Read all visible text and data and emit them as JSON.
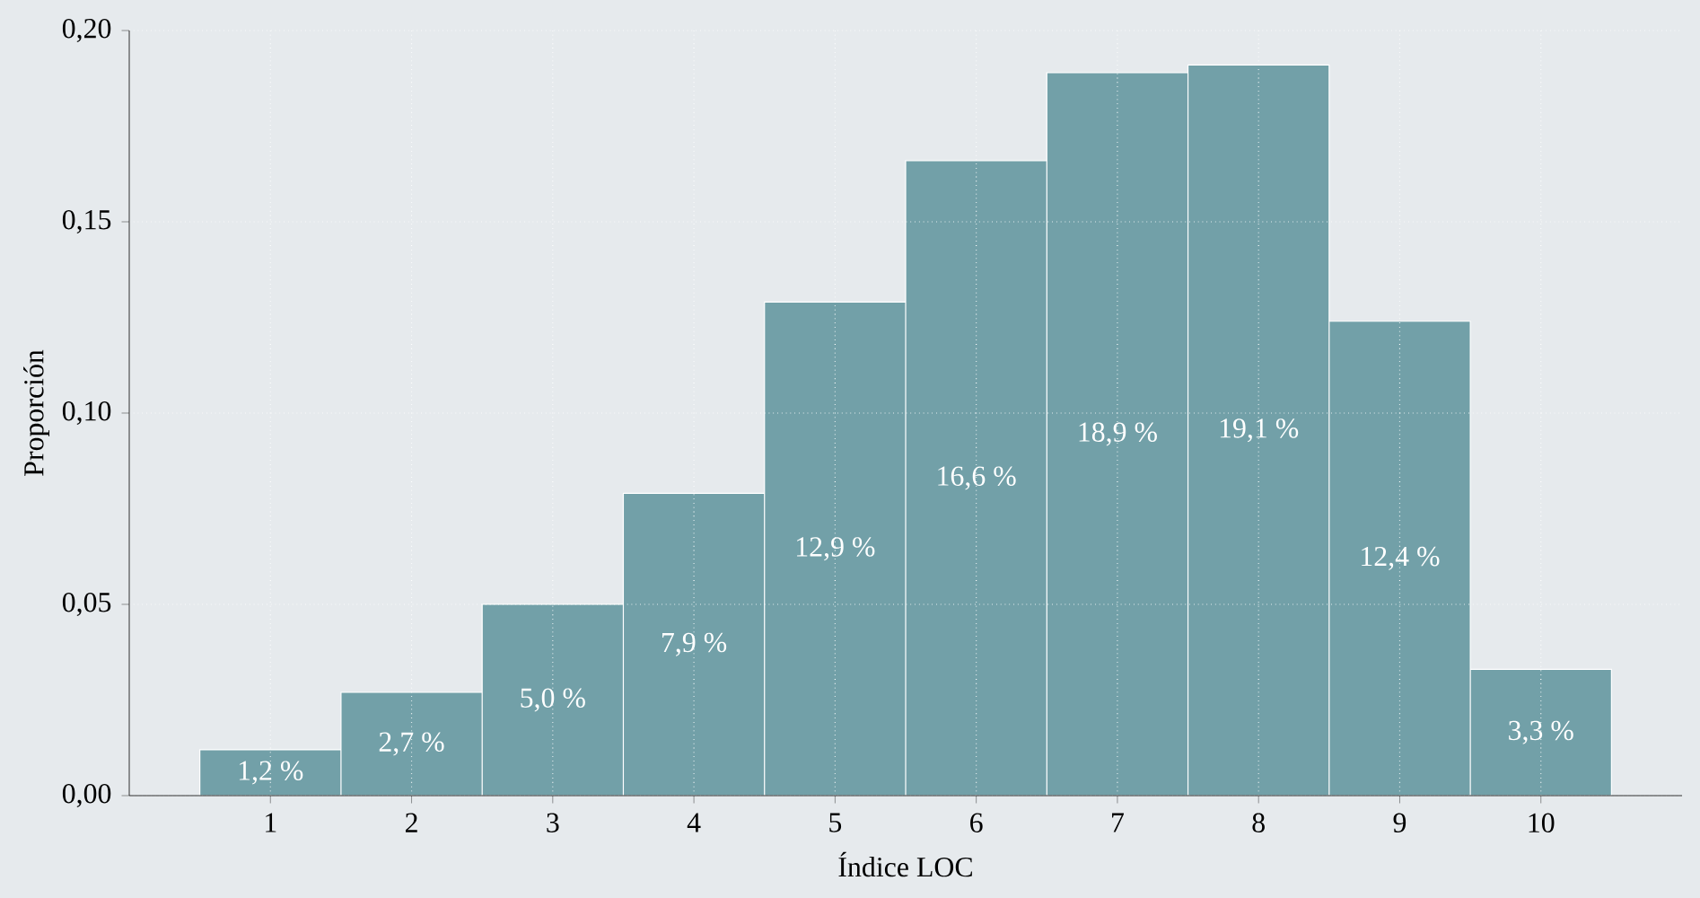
{
  "chart_data": {
    "type": "bar",
    "xlabel": "Índice LOC",
    "ylabel": "Proporción",
    "categories": [
      "1",
      "2",
      "3",
      "4",
      "5",
      "6",
      "7",
      "8",
      "9",
      "10"
    ],
    "values": [
      0.012,
      0.027,
      0.05,
      0.079,
      0.129,
      0.166,
      0.189,
      0.191,
      0.124,
      0.033
    ],
    "value_labels": [
      "1,2 %",
      "2,7 %",
      "5,0 %",
      "7,9 %",
      "12,9 %",
      "16,6 %",
      "18,9 %",
      "19,1 %",
      "12,4 %",
      "3,3 %"
    ],
    "color": "#72a0a8",
    "ylim": [
      0,
      0.2
    ],
    "yticks": [
      {
        "value": 0,
        "label": "0,00"
      },
      {
        "value": 0.05,
        "label": "0,05"
      },
      {
        "value": 0.1,
        "label": "0,10"
      },
      {
        "value": 0.15,
        "label": "0,15"
      },
      {
        "value": 0.2,
        "label": "0,20"
      }
    ],
    "grid": true
  }
}
